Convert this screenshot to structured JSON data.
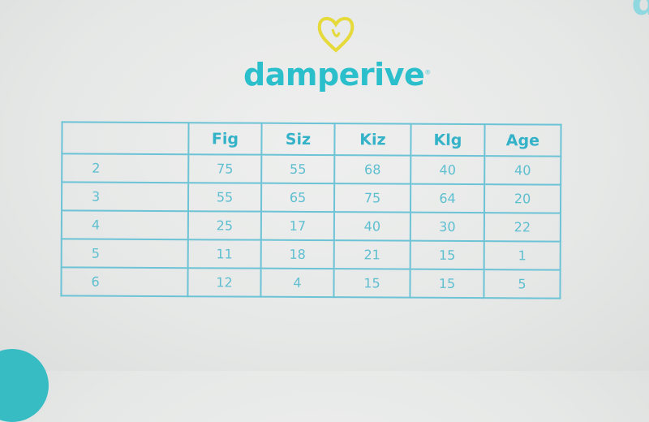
{
  "brand": {
    "name": "damperive",
    "trademark": "®",
    "accent": "#2bbfcc",
    "heart_color": "#e6d93a"
  },
  "table": {
    "headers": [
      "",
      "Fig",
      "Siz",
      "Kiz",
      "Klg",
      "Age"
    ],
    "rows": [
      [
        "2",
        "75",
        "55",
        "68",
        "40",
        "40"
      ],
      [
        "3",
        "55",
        "65",
        "75",
        "64",
        "20"
      ],
      [
        "4",
        "25",
        "17",
        "40",
        "30",
        "22"
      ],
      [
        "5",
        "11",
        "18",
        "21",
        "15",
        "1"
      ],
      [
        "6",
        "12",
        "4",
        "15",
        "15",
        "5"
      ]
    ]
  }
}
